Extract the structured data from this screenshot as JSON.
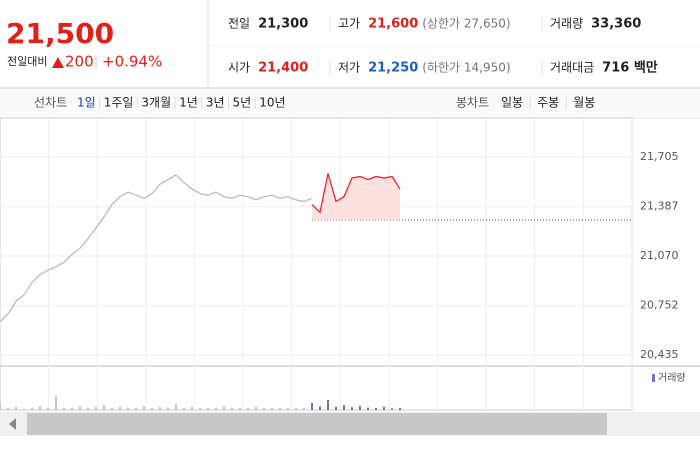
{
  "quote": {
    "price": "21,500",
    "change_label": "전일대비",
    "change": "200",
    "change_pct": "+0.94%"
  },
  "summary": [
    {
      "label": "전일",
      "value": "21,300",
      "color": "#222222"
    },
    {
      "label": "고가",
      "value": "21,600",
      "note": "(상한가 27,650)",
      "color": "#e0201b"
    },
    {
      "label": "거래량",
      "value": "33,360",
      "color": "#222222"
    },
    {
      "label": "시가",
      "value": "21,400",
      "color": "#e0201b"
    },
    {
      "label": "저가",
      "value": "21,250",
      "note": "(하한가 14,950)",
      "color": "#1a5fd0"
    },
    {
      "label": "거래대금",
      "value": "716 백만",
      "color": "#222222"
    }
  ],
  "toolbar": {
    "line_label": "선차트",
    "periods": [
      "1일",
      "1주일",
      "3개월",
      "1년",
      "3년",
      "5년",
      "10년"
    ],
    "selected": 0,
    "candle_label": "봉차트",
    "candles": [
      "일봉",
      "주봉",
      "월봉"
    ]
  },
  "chart_data": {
    "type": "line",
    "x": [
      0,
      1,
      2,
      3,
      4,
      5,
      6,
      7,
      8,
      9,
      10,
      11,
      12,
      13,
      14,
      15,
      16,
      17,
      18,
      19,
      20,
      21,
      22,
      23,
      24,
      25,
      26,
      27,
      28,
      29,
      30,
      31,
      32,
      33,
      34,
      35,
      36,
      37,
      38,
      39,
      40,
      41,
      42,
      43,
      44,
      45,
      46,
      47,
      48,
      49,
      50
    ],
    "xlim": [
      0,
      79
    ],
    "series": [
      {
        "color": "#bbbbbb",
        "values": [
          20650,
          20700,
          20780,
          20820,
          20900,
          20950,
          20980,
          21000,
          21030,
          21080,
          21120,
          21180,
          21250,
          21320,
          21400,
          21450,
          21480,
          21460,
          21440,
          21470,
          21530,
          21560,
          21590,
          21540,
          21500,
          21470,
          21460,
          21480,
          21450,
          21440,
          21460,
          21450,
          21430,
          21450,
          21460,
          21440,
          21450,
          21430,
          21420,
          21440,
          null,
          null,
          null,
          null,
          null,
          null,
          null,
          null,
          null,
          null,
          null
        ]
      },
      {
        "color": "#e8262b",
        "fill": "#fbd9da",
        "values": [
          null,
          null,
          null,
          null,
          null,
          null,
          null,
          null,
          null,
          null,
          null,
          null,
          null,
          null,
          null,
          null,
          null,
          null,
          null,
          null,
          null,
          null,
          null,
          null,
          null,
          null,
          null,
          null,
          null,
          null,
          null,
          null,
          null,
          null,
          null,
          null,
          null,
          null,
          null,
          21400,
          21350,
          21600,
          21420,
          21450,
          21570,
          21580,
          21560,
          21580,
          21570,
          21580,
          21500
        ]
      }
    ],
    "baseline": 21300,
    "ylim": [
      20371,
      21878
    ],
    "yticks": [
      {
        "value": 20435,
        "label": "20,435"
      },
      {
        "value": 20752,
        "label": "20,752"
      },
      {
        "value": 21070,
        "label": "21,070"
      },
      {
        "value": 21387,
        "label": "21,387"
      },
      {
        "value": 21705,
        "label": "21,705"
      }
    ],
    "grid": true,
    "volume_label": "거래량",
    "vlim": [
      0,
      100
    ],
    "volume_series": [
      {
        "color": "#c4c4c4",
        "values": [
          20,
          5,
          8,
          3,
          6,
          10,
          4,
          35,
          6,
          5,
          9,
          4,
          7,
          12,
          5,
          8,
          6,
          4,
          10,
          5,
          7,
          6,
          15,
          5,
          8,
          4,
          6,
          5,
          9,
          4,
          6,
          5,
          7,
          4,
          5,
          6,
          4,
          5,
          6,
          null,
          null,
          null,
          null,
          null,
          null,
          null,
          null,
          null,
          null,
          null,
          null
        ]
      },
      {
        "color": "#7a6fc0",
        "values": [
          null,
          null,
          null,
          null,
          null,
          null,
          null,
          null,
          null,
          null,
          null,
          null,
          null,
          null,
          null,
          null,
          null,
          null,
          null,
          null,
          null,
          null,
          null,
          null,
          null,
          null,
          null,
          null,
          null,
          null,
          null,
          null,
          null,
          null,
          null,
          null,
          null,
          null,
          null,
          18,
          9,
          25,
          8,
          12,
          7,
          10,
          6,
          5,
          8,
          4,
          5
        ]
      }
    ]
  }
}
